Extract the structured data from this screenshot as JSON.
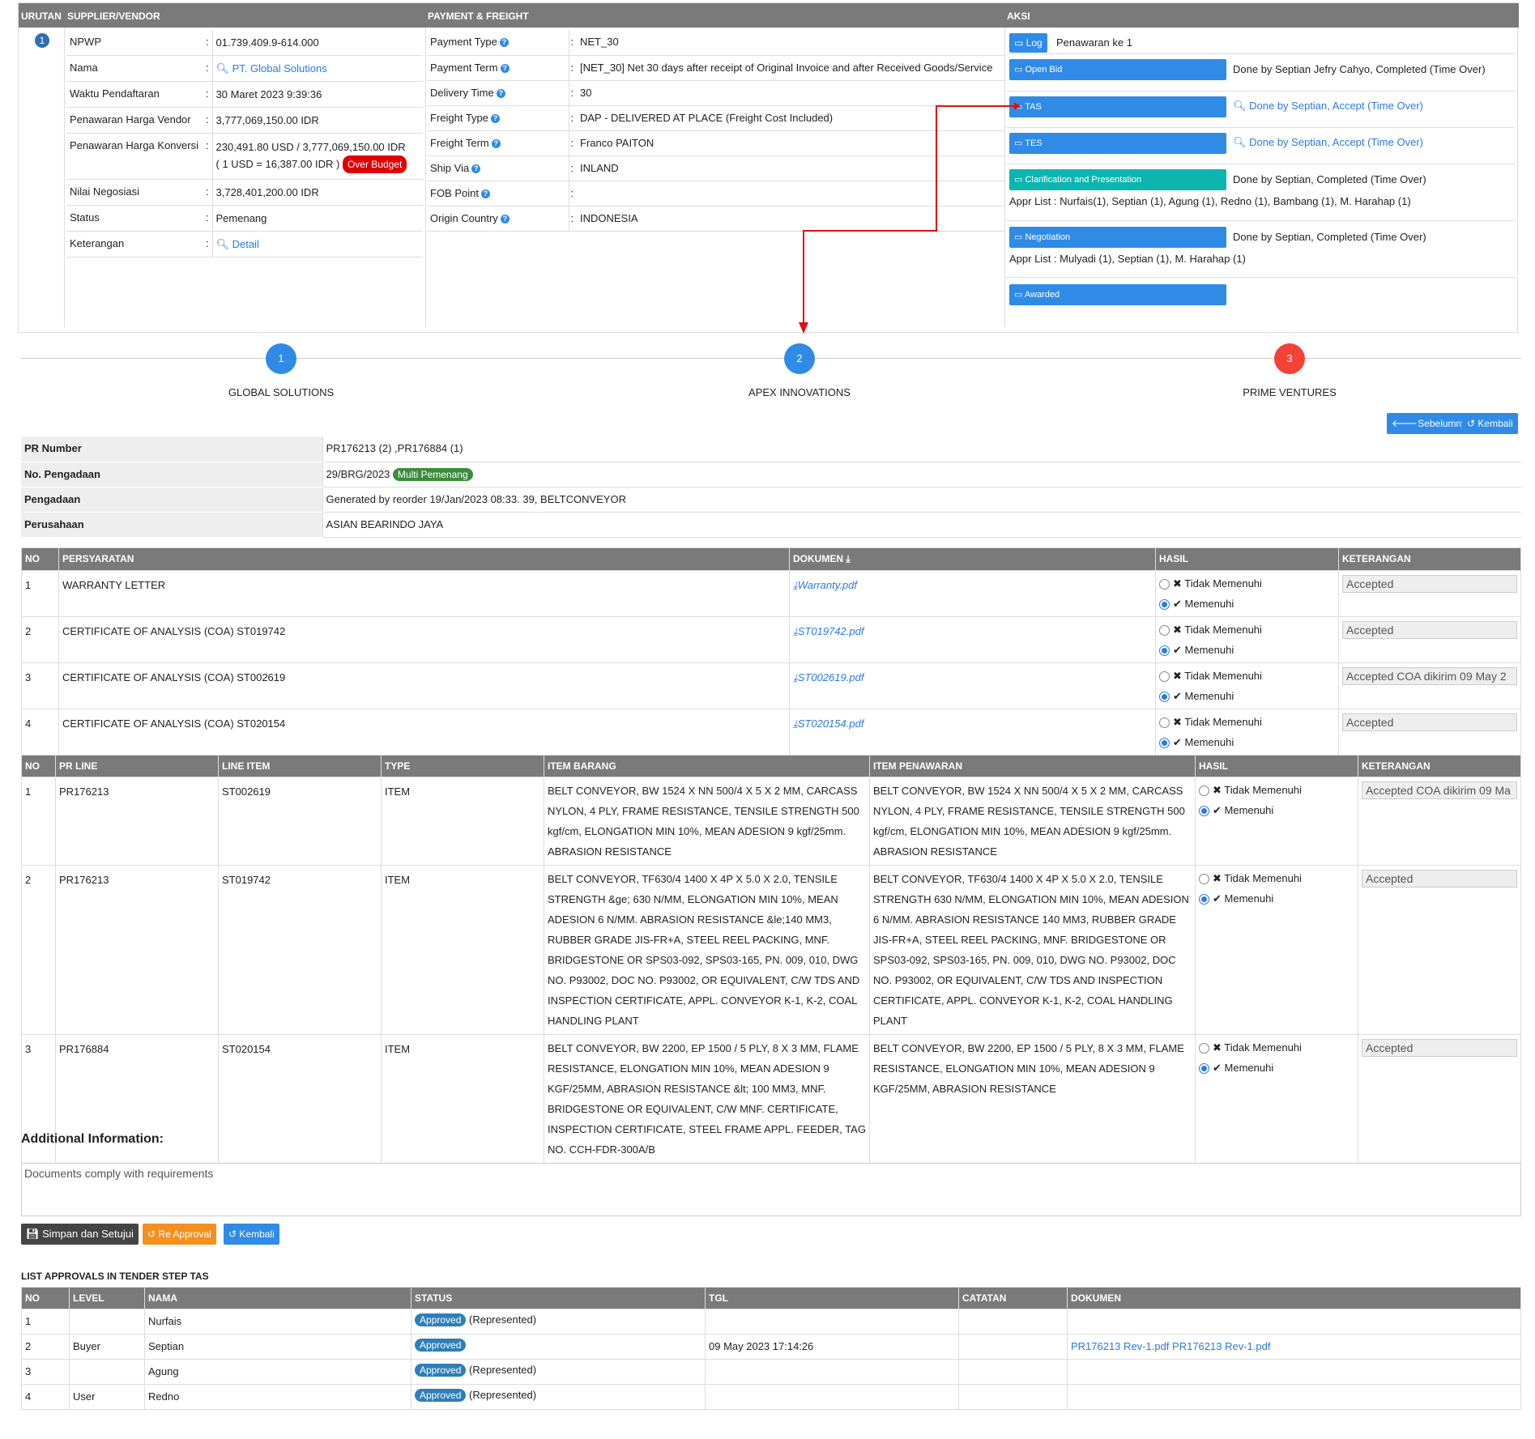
{
  "top": {
    "headers": {
      "urutan": "URUTAN",
      "supplier": "SUPPLIER/VENDOR",
      "payment": "PAYMENT & FREIGHT",
      "aksi": "AKSI"
    },
    "urutan_num": "1",
    "supplier": [
      {
        "label": "NPWP",
        "value": "01.739.409.9-614.000"
      },
      {
        "label": "Nama",
        "value": "PT. Global Solutions"
      },
      {
        "label": "Waktu Pendaftaran",
        "value": "30 Maret 2023 9:39:36"
      },
      {
        "label": "Penawaran Harga Vendor",
        "value": "3,777,069,150.00 IDR"
      },
      {
        "label": "Penawaran Harga Konversi",
        "value": "230,491.80 USD / 3,777,069,150.00 IDR",
        "value2": "( 1 USD = 16,387.00 IDR )",
        "badge": "Over Budget"
      },
      {
        "label": "Nilai Negosiasi",
        "value": "3,728,401,200.00 IDR"
      },
      {
        "label": "Status",
        "value": "Pemenang"
      },
      {
        "label": "Keterangan",
        "value": "Detail"
      }
    ],
    "payment": [
      {
        "label": "Payment Type",
        "value": "NET_30"
      },
      {
        "label": "Payment Term",
        "value": "[NET_30] Net 30 days after receipt of Original Invoice and after Received Goods/Service"
      },
      {
        "label": "Delivery Time",
        "value": "30"
      },
      {
        "label": "Freight Type",
        "value": "DAP - DELIVERED AT PLACE (Freight Cost Included)"
      },
      {
        "label": "Freight Term",
        "value": "Franco PAITON"
      },
      {
        "label": "Ship Via",
        "value": "INLAND"
      },
      {
        "label": "FOB Point",
        "value": ""
      },
      {
        "label": "Origin Country",
        "value": "INDONESIA"
      }
    ],
    "aksi": {
      "log": "Log",
      "log_text": "Penawaran ke 1",
      "open_bid": "Open Bid",
      "open_bid_text": "Done by Septian Jefry Cahyo, Completed (Time Over)",
      "tas": "TAS",
      "tas_text": "Done by Septian, Accept (Time Over)",
      "tes": "TES",
      "tes_text": "Done by Septian, Accept (Time Over)",
      "clar": "Clarification and Presentation",
      "clar_text": "Done by Septian, Completed (Time Over)",
      "clar_appr": "Appr List : Nurfais(1), Septian (1), Agung (1), Redno (1), Bambang (1), M. Harahap (1)",
      "nego": "Negotiation",
      "nego_text": "Done by Septian, Completed (Time Over)",
      "nego_appr": "Appr List : Mulyadi (1), Septian (1), M. Harahap (1)",
      "awarded": "Awarded"
    }
  },
  "steps": [
    {
      "num": "1",
      "label": "GLOBAL SOLUTIONS",
      "color": "#2f8be6"
    },
    {
      "num": "2",
      "label": "APEX INNOVATIONS",
      "color": "#2f8be6"
    },
    {
      "num": "3",
      "label": "PRIME VENTURES",
      "color": "#f44336"
    }
  ],
  "nav": {
    "prev": "Sebelumnya",
    "back": "Kembali"
  },
  "info": [
    {
      "label": "PR Number",
      "value": "PR176213 (2) ,PR176884 (1)"
    },
    {
      "label": "No. Pengadaan",
      "value": "29/BRG/2023",
      "badge": "Multi Pemenang"
    },
    {
      "label": "Pengadaan",
      "value": "Generated by reorder 19/Jan/2023 08:33. 39, BELTCONVEYOR"
    },
    {
      "label": "Perusahaan",
      "value": "ASIAN BEARINDO JAYA"
    }
  ],
  "req_headers": {
    "no": "NO",
    "persyaratan": "PERSYARATAN",
    "dokumen": "DOKUMEN",
    "hasil": "HASIL",
    "keterangan": "KETERANGAN"
  },
  "requirements": [
    {
      "no": "1",
      "name": "WARRANTY LETTER",
      "doc": "Warranty.pdf",
      "ket": "Accepted"
    },
    {
      "no": "2",
      "name": "CERTIFICATE OF ANALYSIS (COA) ST019742",
      "doc": "ST019742.pdf",
      "ket": "Accepted"
    },
    {
      "no": "3",
      "name": "CERTIFICATE OF ANALYSIS (COA) ST002619",
      "doc": "ST002619.pdf",
      "ket": "Accepted COA dikirim 09 May 2"
    },
    {
      "no": "4",
      "name": "CERTIFICATE OF ANALYSIS (COA) ST020154",
      "doc": "ST020154.pdf",
      "ket": "Accepted"
    }
  ],
  "opt": {
    "no": "Tidak Memenuhi",
    "yes": "Memenuhi"
  },
  "item_headers": {
    "no": "NO",
    "prline": "PR LINE",
    "lineitem": "LINE ITEM",
    "type": "TYPE",
    "barang": "ITEM BARANG",
    "penawaran": "ITEM PENAWARAN",
    "hasil": "HASIL",
    "keterangan": "KETERANGAN"
  },
  "items": [
    {
      "no": "1",
      "prline": "PR176213",
      "lineitem": "ST002619",
      "type": "ITEM",
      "barang": "BELT CONVEYOR, BW 1524 X NN 500/4 X 5 X 2 MM, CARCASS NYLON, 4 PLY, FRAME RESISTANCE, TENSILE STRENGTH 500 kgf/cm, ELONGATION MIN 10%, MEAN ADESION 9 kgf/25mm. ABRASION RESISTANCE",
      "penawaran": "BELT CONVEYOR, BW 1524 X NN 500/4 X 5 X 2 MM, CARCASS NYLON, 4 PLY, FRAME RESISTANCE, TENSILE STRENGTH 500 kgf/cm, ELONGATION MIN 10%, MEAN ADESION 9 kgf/25mm. ABRASION RESISTANCE",
      "ket": "Accepted COA dikirim 09 Ma"
    },
    {
      "no": "2",
      "prline": "PR176213",
      "lineitem": "ST019742",
      "type": "ITEM",
      "barang": "BELT CONVEYOR, TF630/4 1400 X 4P X 5.0 X 2.0, TENSILE STRENGTH &ge; 630 N/MM, ELONGATION MIN 10%, MEAN ADESION 6 N/MM. ABRASION RESISTANCE &le;140 MM3, RUBBER GRADE JIS-FR+A, STEEL REEL PACKING, MNF. BRIDGESTONE OR SPS03-092, SPS03-165, PN. 009, 010, DWG NO. P93002, DOC NO. P93002, OR EQUIVALENT, C/W TDS AND INSPECTION CERTIFICATE, APPL. CONVEYOR K-1, K-2, COAL HANDLING PLANT",
      "penawaran": "BELT CONVEYOR, TF630/4 1400 X 4P X 5.0 X 2.0, TENSILE STRENGTH 630 N/MM, ELONGATION MIN 10%, MEAN ADESION 6 N/MM. ABRASION RESISTANCE 140 MM3, RUBBER GRADE JIS-FR+A, STEEL REEL PACKING, MNF. BRIDGESTONE OR SPS03-092, SPS03-165, PN. 009, 010, DWG NO. P93002, DOC NO. P93002, OR EQUIVALENT, C/W TDS AND INSPECTION CERTIFICATE, APPL. CONVEYOR K-1, K-2, COAL HANDLING PLANT",
      "ket": "Accepted"
    },
    {
      "no": "3",
      "prline": "PR176884",
      "lineitem": "ST020154",
      "type": "ITEM",
      "barang": "BELT CONVEYOR, BW 2200, EP 1500 / 5 PLY, 8 X 3 MM, FLAME RESISTANCE, ELONGATION MIN 10%, MEAN ADESION 9 KGF/25MM, ABRASION RESISTANCE &lt; 100 MM3, MNF. BRIDGESTONE OR EQUIVALENT, C/W MNF. CERTIFICATE, INSPECTION CERTIFICATE, STEEL FRAME APPL. FEEDER, TAG NO. CCH-FDR-300A/B",
      "penawaran": "BELT CONVEYOR, BW 2200, EP 1500 / 5 PLY, 8 X 3 MM, FLAME RESISTANCE, ELONGATION MIN 10%, MEAN ADESION 9 KGF/25MM, ABRASION RESISTANCE",
      "ket": "Accepted"
    }
  ],
  "additional": {
    "title": "Additional Information:",
    "text": "Documents comply with requirements"
  },
  "actions": {
    "save": "Simpan dan Setujui",
    "reapproval": "Re Approval",
    "back": "Kembali"
  },
  "approvals": {
    "title": "LIST APPROVALS IN TENDER STEP TAS",
    "headers": {
      "no": "NO",
      "level": "LEVEL",
      "nama": "NAMA",
      "status": "STATUS",
      "tgl": "TGL",
      "catatan": "CATATAN",
      "dokumen": "DOKUMEN"
    },
    "rows": [
      {
        "no": "1",
        "level": "",
        "nama": "Nurfais",
        "status": "Approved",
        "rep": "(Represented)",
        "tgl": "",
        "catatan": "",
        "dok": ""
      },
      {
        "no": "2",
        "level": "Buyer",
        "nama": "Septian",
        "status": "Approved",
        "rep": "",
        "tgl": "09 May 2023 17:14:26",
        "catatan": "",
        "dok": "PR176213 Rev-1.pdf PR176213 Rev-1.pdf"
      },
      {
        "no": "3",
        "level": "",
        "nama": "Agung",
        "status": "Approved",
        "rep": "(Represented)",
        "tgl": "",
        "catatan": "",
        "dok": ""
      },
      {
        "no": "4",
        "level": "User",
        "nama": "Redno",
        "status": "Approved",
        "rep": "(Represented)",
        "tgl": "",
        "catatan": "",
        "dok": ""
      }
    ]
  },
  "colors": {
    "header_gray": "#7a7a7a",
    "primary_blue": "#2f8be6",
    "teal": "#0cb5ae",
    "over_budget_red": "#e00000",
    "multi_green": "#3c8c3c",
    "approved_badge": "#2e7fb8",
    "reapproval_orange": "#f5901e",
    "save_dark": "#444444",
    "arrow_red": "#e01010"
  }
}
